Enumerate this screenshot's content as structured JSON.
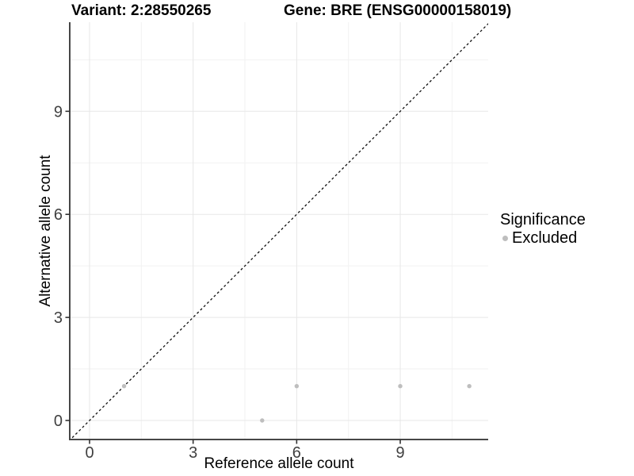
{
  "header": {
    "variant_title": "Variant: 2:28550265",
    "gene_title": "Gene: BRE (ENSG00000158019)"
  },
  "axes": {
    "x_label": "Reference allele count",
    "y_label": "Alternative allele count"
  },
  "legend": {
    "title": "Significance",
    "position": "right",
    "items": [
      {
        "label": "Excluded",
        "color": "#bebebe"
      }
    ]
  },
  "colors": {
    "background": "#ffffff",
    "grid_major": "#e7e7e7",
    "grid_minor": "#f2f2f2",
    "axis_line": "#474747",
    "tick_mark": "#333333",
    "tick_label": "#404040",
    "point": "#bebebe",
    "identity_line": "#111111"
  },
  "chart_data": {
    "type": "scatter",
    "title": "Variant: 2:28550265 | Gene: BRE (ENSG00000158019)",
    "xlabel": "Reference allele count",
    "ylabel": "Alternative allele count",
    "xlim": [
      -0.6,
      11.6
    ],
    "ylim": [
      -0.6,
      11.6
    ],
    "x_major_ticks": [
      0,
      3,
      6,
      9
    ],
    "y_major_ticks": [
      0,
      3,
      6,
      9
    ],
    "x_minor_gridlines": [
      1.5,
      4.5,
      7.5,
      10.5
    ],
    "y_minor_gridlines": [
      1.5,
      4.5,
      7.5,
      10.5
    ],
    "grid": true,
    "legend_position": "right",
    "reference_line": {
      "kind": "identity y=x",
      "style": "dashed",
      "from": [
        -0.6,
        -0.6
      ],
      "to": [
        11.6,
        11.6
      ]
    },
    "series": [
      {
        "name": "Excluded",
        "color": "#bebebe",
        "points": [
          [
            1,
            1
          ],
          [
            5,
            0
          ],
          [
            6,
            1
          ],
          [
            9,
            1
          ],
          [
            11,
            1
          ]
        ]
      }
    ]
  }
}
